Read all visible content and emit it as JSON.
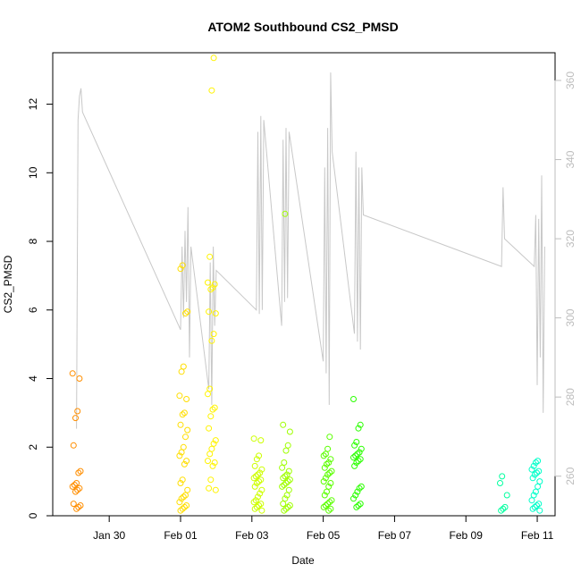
{
  "chart_data": {
    "type": "scatter",
    "title": "ATOM2 Southbound CS2_PMSD",
    "xlabel": "Date",
    "ylabel": "CS2_PMSD",
    "x_unit": "days",
    "xlim": [
      "2024-01-28T10:00",
      "2024-02-11T12:00"
    ],
    "ylim": [
      0,
      13.5
    ],
    "y2lim": [
      250,
      367
    ],
    "x_ticks": [
      {
        "label": "Jan 30",
        "x": "2024-01-30T00:00"
      },
      {
        "label": "Feb 01",
        "x": "2024-02-01T00:00"
      },
      {
        "label": "Feb 03",
        "x": "2024-02-03T00:00"
      },
      {
        "label": "Feb 05",
        "x": "2024-02-05T00:00"
      },
      {
        "label": "Feb 07",
        "x": "2024-02-07T00:00"
      },
      {
        "label": "Feb 09",
        "x": "2024-02-09T00:00"
      },
      {
        "label": "Feb 11",
        "x": "2024-02-11T00:00"
      }
    ],
    "y_ticks": [
      0,
      2,
      4,
      6,
      8,
      10,
      12
    ],
    "y2_ticks": [
      260,
      280,
      300,
      320,
      340,
      360
    ],
    "grid": false,
    "series": [
      {
        "marker": "open-circle",
        "color_scale": [
          "#ff8c00",
          "#ffff00",
          "#00ff00",
          "#00ffcc"
        ],
        "clusters": [
          {
            "x": "2024-01-29T02:00",
            "values": [
              4.15,
              4.0,
              3.05,
              2.85,
              2.05,
              1.3,
              1.25,
              0.95,
              0.9,
              0.85,
              0.8,
              0.75,
              0.7,
              0.35,
              0.3,
              0.25,
              0.2
            ]
          },
          {
            "x": "2024-02-01T02:00",
            "values": [
              7.3,
              7.2,
              5.95,
              5.9,
              4.35,
              4.2,
              3.5,
              3.4,
              3.0,
              2.95,
              2.65,
              2.5,
              2.3,
              2.0,
              1.85,
              1.75,
              1.6,
              1.5,
              1.05,
              0.95,
              0.75,
              0.6,
              0.55,
              0.5,
              0.4,
              0.3,
              0.25,
              0.2,
              0.15
            ]
          },
          {
            "x": "2024-02-01T21:00",
            "values": [
              13.35,
              12.4,
              7.55,
              6.8,
              6.75,
              6.65,
              6.6,
              5.95,
              5.9,
              5.3,
              5.1,
              3.7,
              3.55,
              3.15,
              3.1,
              2.9,
              2.55,
              2.2,
              2.1,
              1.95,
              1.8,
              1.6,
              1.55,
              1.45,
              1.05,
              0.8,
              0.75
            ]
          },
          {
            "x": "2024-02-03T04:00",
            "values": [
              2.25,
              2.2,
              1.75,
              1.65,
              1.45,
              1.35,
              1.25,
              1.2,
              1.15,
              1.1,
              1.05,
              1.0,
              0.95,
              0.85,
              0.75,
              0.65,
              0.55,
              0.45,
              0.4,
              0.35,
              0.3,
              0.25,
              0.2,
              0.15
            ]
          },
          {
            "x": "2024-02-03T23:00",
            "values": [
              8.8,
              2.65,
              2.45,
              2.05,
              1.9,
              1.55,
              1.4,
              1.3,
              1.2,
              1.15,
              1.1,
              1.05,
              1.0,
              0.95,
              0.9,
              0.85,
              0.75,
              0.6,
              0.5,
              0.35,
              0.3,
              0.25,
              0.2,
              0.15
            ]
          },
          {
            "x": "2024-02-05T03:00",
            "values": [
              2.3,
              1.95,
              1.8,
              1.75,
              1.65,
              1.55,
              1.5,
              1.4,
              1.3,
              1.25,
              1.2,
              1.1,
              1.0,
              0.95,
              0.85,
              0.7,
              0.6,
              0.45,
              0.4,
              0.35,
              0.3,
              0.25,
              0.2,
              0.15
            ]
          },
          {
            "x": "2024-02-05T23:00",
            "values": [
              3.4,
              2.65,
              2.55,
              2.15,
              2.05,
              1.95,
              1.85,
              1.8,
              1.75,
              1.7,
              1.65,
              1.6,
              1.55,
              1.45,
              0.85,
              0.8,
              0.7,
              0.6,
              0.5,
              0.35,
              0.3,
              0.25
            ]
          },
          {
            "x": "2024-02-10T01:00",
            "values": [
              1.15,
              0.95,
              0.6,
              0.25,
              0.2,
              0.15
            ]
          },
          {
            "x": "2024-02-10T23:00",
            "values": [
              1.6,
              1.55,
              1.45,
              1.35,
              1.3,
              1.25,
              1.2,
              1.1,
              1.0,
              0.85,
              0.7,
              0.6,
              0.45,
              0.35,
              0.3,
              0.25,
              0.2,
              0.15
            ]
          }
        ]
      },
      {
        "axis": "right",
        "line": true,
        "color": "#c8c8c8",
        "points": [
          [
            "2024-01-29T02:00",
            272
          ],
          [
            "2024-01-29T03:00",
            350
          ],
          [
            "2024-01-29T04:00",
            356
          ],
          [
            "2024-01-29T05:00",
            358
          ],
          [
            "2024-01-29T06:00",
            352
          ],
          [
            "2024-02-01T00:00",
            297
          ],
          [
            "2024-02-01T01:00",
            318
          ],
          [
            "2024-02-01T02:00",
            300
          ],
          [
            "2024-02-01T03:00",
            322
          ],
          [
            "2024-02-01T04:00",
            304
          ],
          [
            "2024-02-01T05:00",
            328
          ],
          [
            "2024-02-01T06:00",
            290
          ],
          [
            "2024-02-01T07:00",
            318
          ],
          [
            "2024-02-01T19:00",
            282
          ],
          [
            "2024-02-01T20:00",
            314
          ],
          [
            "2024-02-01T21:00",
            278
          ],
          [
            "2024-02-01T22:00",
            318
          ],
          [
            "2024-02-01T23:00",
            298
          ],
          [
            "2024-02-02T00:00",
            312
          ],
          [
            "2024-02-03T03:00",
            302
          ],
          [
            "2024-02-03T04:00",
            347
          ],
          [
            "2024-02-03T05:00",
            301
          ],
          [
            "2024-02-03T06:00",
            351
          ],
          [
            "2024-02-03T07:00",
            302
          ],
          [
            "2024-02-03T08:00",
            350
          ],
          [
            "2024-02-03T20:00",
            298
          ],
          [
            "2024-02-03T21:00",
            345
          ],
          [
            "2024-02-03T22:00",
            304
          ],
          [
            "2024-02-03T23:00",
            348
          ],
          [
            "2024-02-04T00:00",
            305
          ],
          [
            "2024-02-04T01:00",
            347
          ],
          [
            "2024-02-05T00:00",
            289
          ],
          [
            "2024-02-05T01:00",
            338
          ],
          [
            "2024-02-05T02:00",
            286
          ],
          [
            "2024-02-05T03:00",
            348
          ],
          [
            "2024-02-05T04:00",
            278
          ],
          [
            "2024-02-05T05:00",
            362
          ],
          [
            "2024-02-05T06:00",
            342
          ],
          [
            "2024-02-05T21:00",
            296
          ],
          [
            "2024-02-05T22:00",
            342
          ],
          [
            "2024-02-05T23:00",
            294
          ],
          [
            "2024-02-06T00:00",
            338
          ],
          [
            "2024-02-06T01:00",
            292
          ],
          [
            "2024-02-06T02:00",
            338
          ],
          [
            "2024-02-06T03:00",
            326
          ],
          [
            "2024-02-10T00:00",
            313
          ],
          [
            "2024-02-10T01:00",
            333
          ],
          [
            "2024-02-10T02:00",
            320
          ],
          [
            "2024-02-10T22:00",
            313
          ],
          [
            "2024-02-10T23:00",
            326
          ],
          [
            "2024-02-11T00:00",
            283
          ],
          [
            "2024-02-11T01:00",
            325
          ],
          [
            "2024-02-11T02:00",
            290
          ],
          [
            "2024-02-11T03:00",
            336
          ],
          [
            "2024-02-11T04:00",
            276
          ],
          [
            "2024-02-11T05:00",
            318
          ]
        ]
      }
    ]
  }
}
